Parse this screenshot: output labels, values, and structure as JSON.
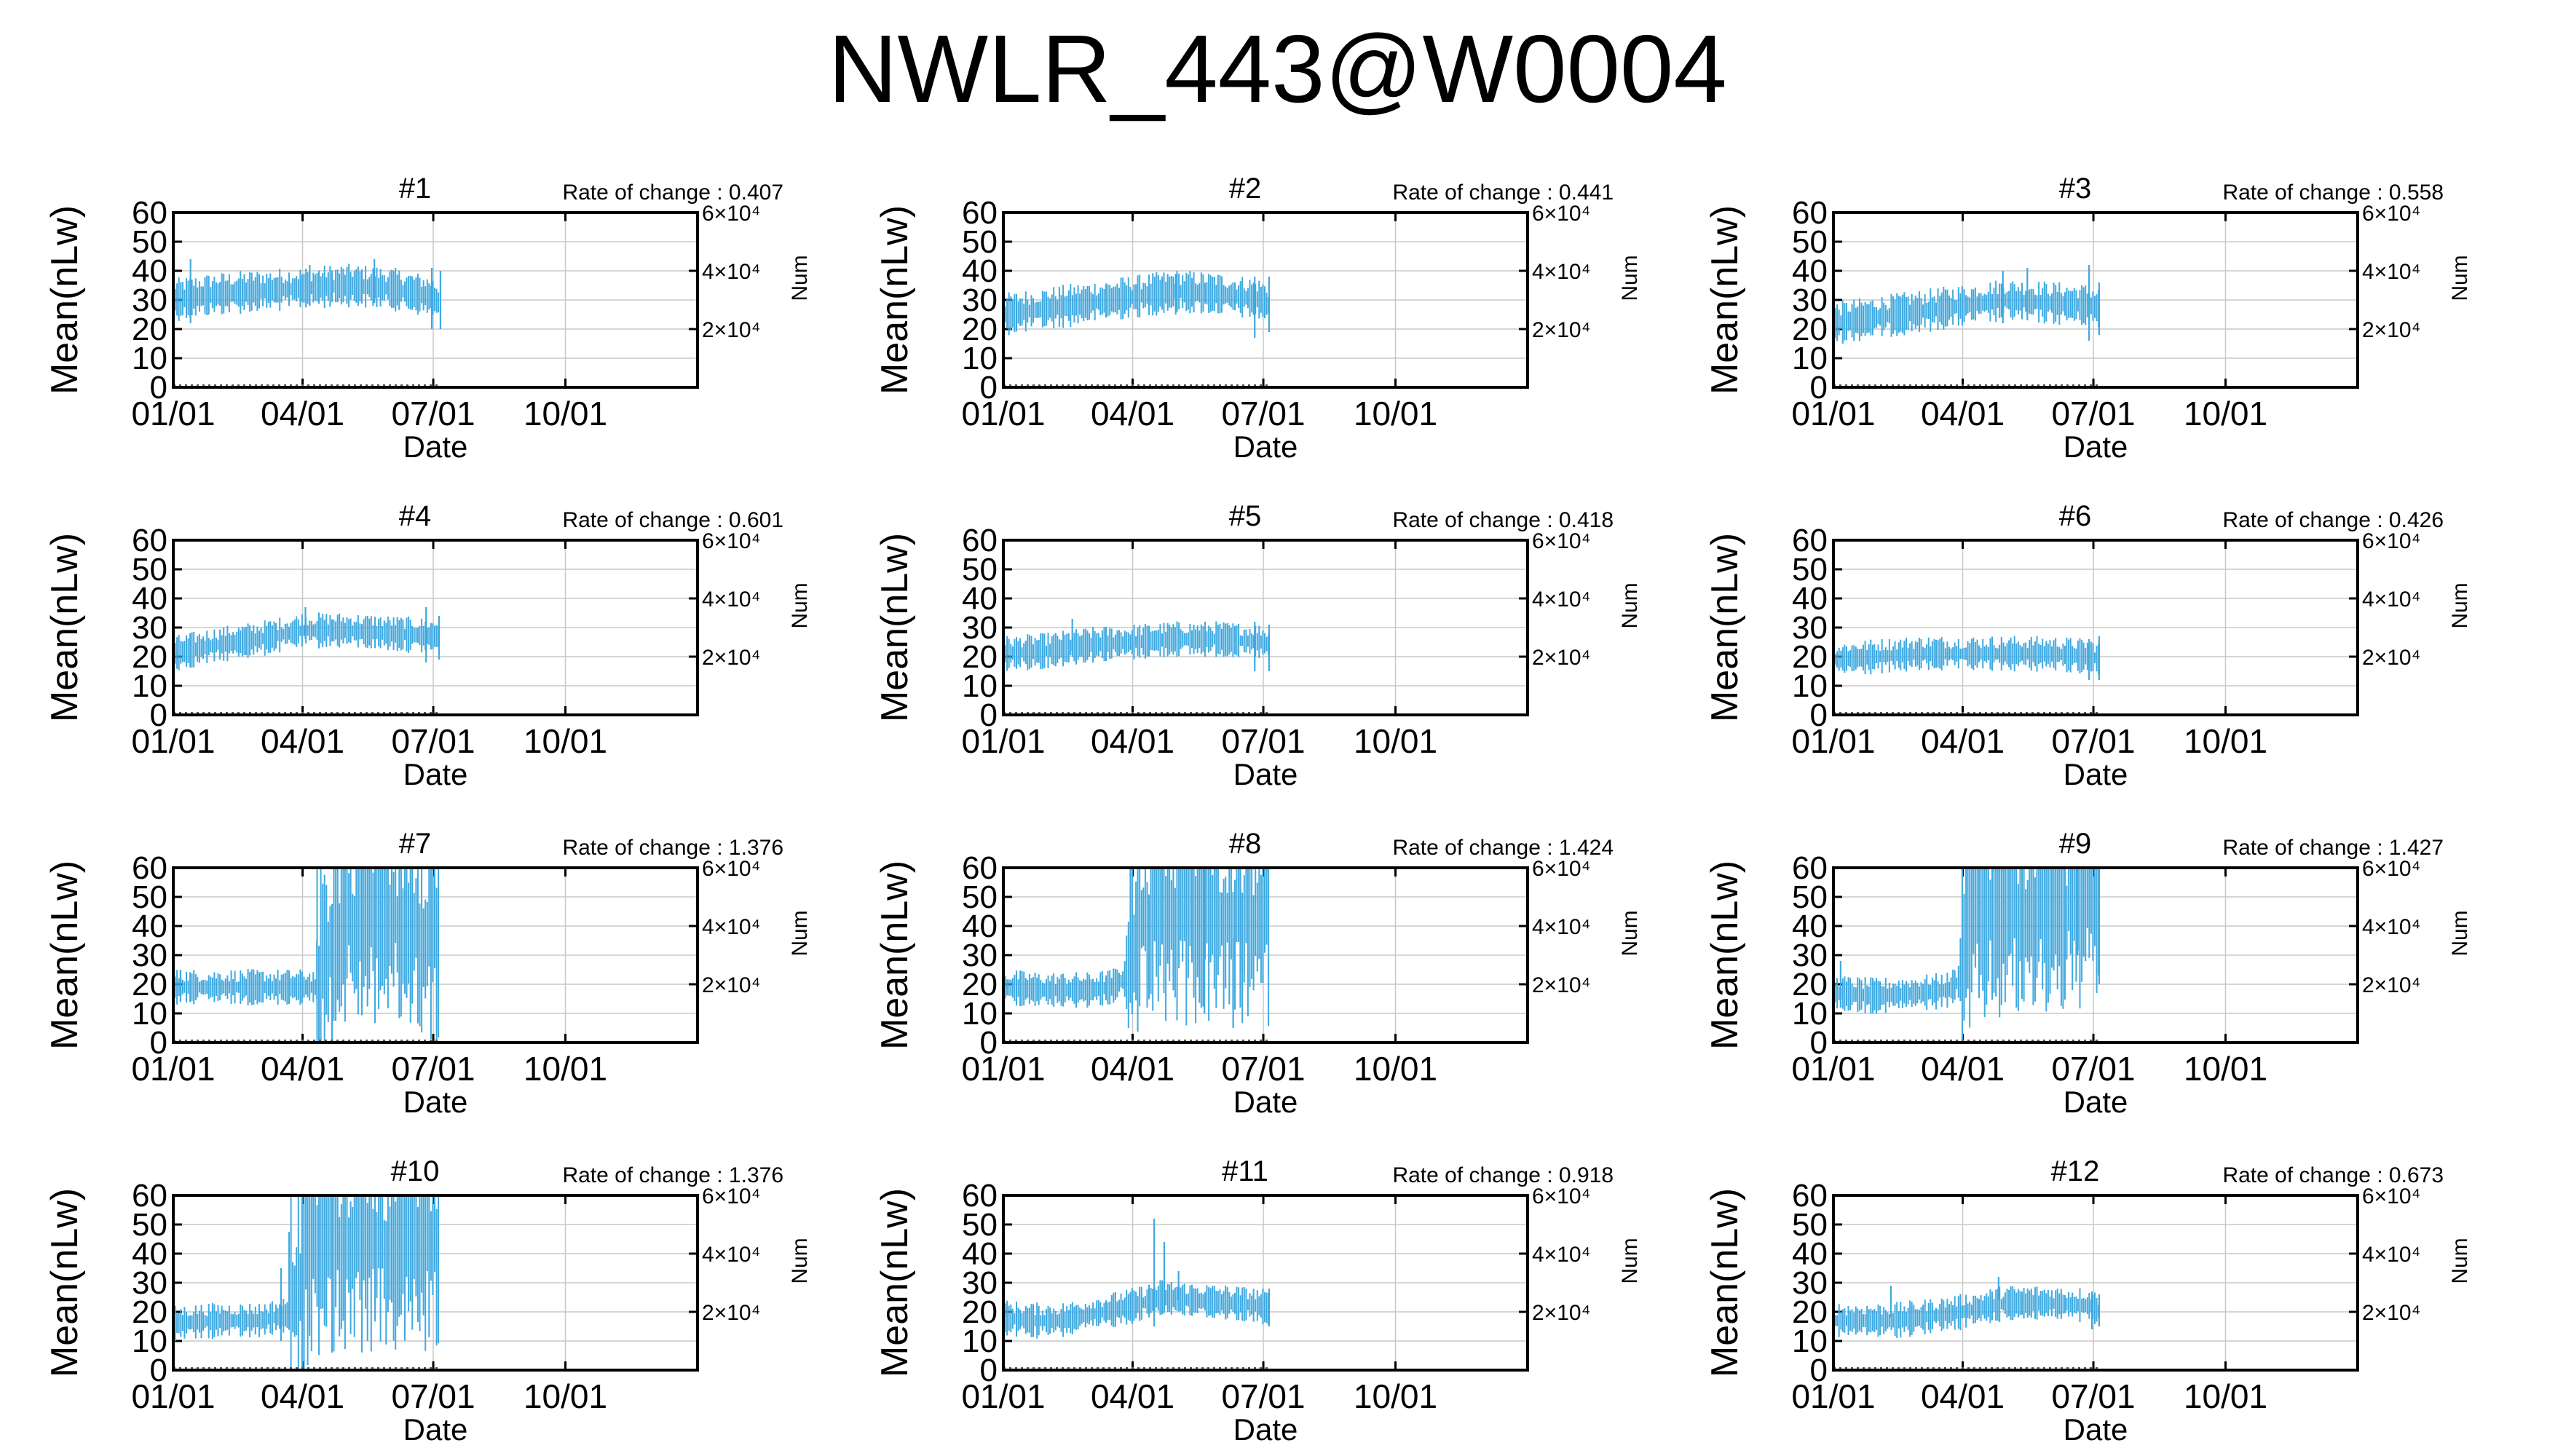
{
  "title": "NWLR_443@W0004",
  "shared": {
    "ylabel": "Mean(nLw)",
    "xlabel": "Date",
    "y2label": "Num",
    "y_ticks": [
      "0",
      "10",
      "20",
      "30",
      "40",
      "50",
      "60"
    ],
    "y2_ticks": [
      "2×10⁴",
      "4×10⁴",
      "6×10⁴"
    ],
    "x_ticks": [
      "01/01",
      "04/01",
      "07/01",
      "10/01"
    ],
    "rate_prefix": "Rate of change : ",
    "series_color": "#3fa9e0"
  },
  "chart_data": [
    {
      "type": "line",
      "label": "#1",
      "rate_of_change": "0.407",
      "x_range": [
        "01/01",
        "12/31"
      ],
      "ylim": [
        0,
        60
      ],
      "y2lim": [
        0,
        60000
      ],
      "data_end": "07/05",
      "mean_path": [
        [
          0,
          30
        ],
        [
          30,
          32
        ],
        [
          60,
          33
        ],
        [
          90,
          34
        ],
        [
          120,
          35
        ],
        [
          150,
          34
        ],
        [
          180,
          31
        ],
        [
          185,
          29
        ]
      ],
      "spread": 6,
      "spikes": [
        [
          0,
          24,
          38
        ],
        [
          12,
          22,
          44
        ],
        [
          95,
          28,
          42
        ],
        [
          140,
          29,
          44
        ],
        [
          180,
          20,
          41
        ],
        [
          186,
          20,
          40
        ]
      ]
    },
    {
      "type": "line",
      "label": "#2",
      "rate_of_change": "0.441",
      "x_range": [
        "01/01",
        "12/31"
      ],
      "ylim": [
        0,
        60
      ],
      "y2lim": [
        0,
        60000
      ],
      "data_end": "07/05",
      "mean_path": [
        [
          0,
          25
        ],
        [
          30,
          27
        ],
        [
          60,
          29
        ],
        [
          90,
          31
        ],
        [
          120,
          33
        ],
        [
          150,
          32
        ],
        [
          180,
          30
        ],
        [
          185,
          28
        ]
      ],
      "spread": 6,
      "spikes": [
        [
          0,
          18,
          33
        ],
        [
          120,
          25,
          39
        ],
        [
          175,
          17,
          38
        ],
        [
          185,
          19,
          38
        ]
      ]
    },
    {
      "type": "line",
      "label": "#3",
      "rate_of_change": "0.558",
      "x_range": [
        "01/01",
        "12/31"
      ],
      "ylim": [
        0,
        60
      ],
      "y2lim": [
        0,
        60000
      ],
      "data_end": "07/05",
      "mean_path": [
        [
          0,
          22
        ],
        [
          30,
          24
        ],
        [
          60,
          26
        ],
        [
          90,
          28
        ],
        [
          120,
          30
        ],
        [
          150,
          29
        ],
        [
          180,
          28
        ],
        [
          185,
          27
        ]
      ],
      "spread": 6,
      "spikes": [
        [
          0,
          15,
          31
        ],
        [
          118,
          22,
          40
        ],
        [
          135,
          23,
          41
        ],
        [
          178,
          16,
          42
        ],
        [
          185,
          18,
          36
        ]
      ]
    },
    {
      "type": "line",
      "label": "#4",
      "rate_of_change": "0.601",
      "x_range": [
        "01/01",
        "12/31"
      ],
      "ylim": [
        0,
        60
      ],
      "y2lim": [
        0,
        60000
      ],
      "data_end": "07/05",
      "mean_path": [
        [
          0,
          21
        ],
        [
          30,
          24
        ],
        [
          60,
          26
        ],
        [
          90,
          29
        ],
        [
          120,
          29
        ],
        [
          150,
          28
        ],
        [
          180,
          27
        ],
        [
          185,
          27
        ]
      ],
      "spread": 5,
      "spikes": [
        [
          0,
          17,
          25
        ],
        [
          92,
          26,
          37
        ],
        [
          176,
          18,
          37
        ],
        [
          185,
          19,
          34
        ]
      ]
    },
    {
      "type": "line",
      "label": "#5",
      "rate_of_change": "0.418",
      "x_range": [
        "01/01",
        "12/31"
      ],
      "ylim": [
        0,
        60
      ],
      "y2lim": [
        0,
        60000
      ],
      "data_end": "07/05",
      "mean_path": [
        [
          0,
          21
        ],
        [
          30,
          22
        ],
        [
          60,
          24
        ],
        [
          90,
          25
        ],
        [
          120,
          26
        ],
        [
          150,
          26
        ],
        [
          180,
          25
        ],
        [
          185,
          24
        ]
      ],
      "spread": 5,
      "spikes": [
        [
          48,
          22,
          33
        ],
        [
          175,
          15,
          32
        ],
        [
          185,
          15,
          31
        ]
      ]
    },
    {
      "type": "line",
      "label": "#6",
      "rate_of_change": "0.426",
      "x_range": [
        "01/01",
        "12/31"
      ],
      "ylim": [
        0,
        60
      ],
      "y2lim": [
        0,
        60000
      ],
      "data_end": "07/05",
      "mean_path": [
        [
          0,
          19
        ],
        [
          30,
          20
        ],
        [
          60,
          21
        ],
        [
          90,
          21
        ],
        [
          120,
          21
        ],
        [
          150,
          21
        ],
        [
          180,
          20
        ],
        [
          185,
          19
        ]
      ],
      "spread": 5,
      "spikes": [
        [
          0,
          14,
          25
        ],
        [
          178,
          12,
          26
        ],
        [
          185,
          12,
          27
        ]
      ]
    },
    {
      "type": "line",
      "label": "#7",
      "rate_of_change": "1.376",
      "x_range": [
        "01/01",
        "12/31"
      ],
      "ylim": [
        0,
        60
      ],
      "y2lim": [
        0,
        60000
      ],
      "data_end": "07/05",
      "mean_path": [
        [
          0,
          19
        ],
        [
          30,
          19
        ],
        [
          60,
          19
        ],
        [
          90,
          19
        ],
        [
          100,
          19
        ],
        [
          105,
          24
        ],
        [
          120,
          40
        ],
        [
          150,
          40
        ],
        [
          180,
          35
        ],
        [
          185,
          30
        ]
      ],
      "spread": 5,
      "high_after": 100,
      "spikes": [
        [
          5,
          14,
          25
        ],
        [
          100,
          15,
          35
        ]
      ]
    },
    {
      "type": "line",
      "label": "#8",
      "rate_of_change": "1.424",
      "x_range": [
        "01/01",
        "12/31"
      ],
      "ylim": [
        0,
        60
      ],
      "y2lim": [
        0,
        60000
      ],
      "data_end": "07/05",
      "mean_path": [
        [
          0,
          19
        ],
        [
          30,
          18
        ],
        [
          60,
          18
        ],
        [
          75,
          19
        ],
        [
          85,
          22
        ],
        [
          95,
          40
        ],
        [
          110,
          40
        ]
      ],
      "spread": 5,
      "high_after": 85,
      "spikes": [
        [
          140,
          10,
          60
        ],
        [
          160,
          5,
          36
        ],
        [
          165,
          12,
          60
        ]
      ]
    },
    {
      "type": "line",
      "label": "#9",
      "rate_of_change": "1.427",
      "x_range": [
        "01/01",
        "12/31"
      ],
      "ylim": [
        0,
        60
      ],
      "y2lim": [
        0,
        60000
      ],
      "data_end": "07/05",
      "mean_path": [
        [
          0,
          17
        ],
        [
          30,
          16
        ],
        [
          60,
          17
        ],
        [
          80,
          18
        ],
        [
          90,
          22
        ],
        [
          100,
          40
        ],
        [
          185,
          45
        ]
      ],
      "spread": 5,
      "high_after": 88,
      "spikes": [
        [
          0,
          12,
          31
        ],
        [
          5,
          12,
          28
        ],
        [
          170,
          30,
          60
        ],
        [
          185,
          20,
          60
        ]
      ]
    },
    {
      "type": "line",
      "label": "#10",
      "rate_of_change": "1.376",
      "x_range": [
        "01/01",
        "12/31"
      ],
      "ylim": [
        0,
        60
      ],
      "y2lim": [
        0,
        60000
      ],
      "data_end": "07/05",
      "mean_path": [
        [
          0,
          16
        ],
        [
          30,
          17
        ],
        [
          60,
          17
        ],
        [
          80,
          19
        ],
        [
          88,
          22
        ],
        [
          95,
          40
        ],
        [
          185,
          40
        ]
      ],
      "spread": 5,
      "high_after": 80,
      "spikes": [
        [
          0,
          10,
          21
        ],
        [
          75,
          10,
          35
        ]
      ]
    },
    {
      "type": "line",
      "label": "#11",
      "rate_of_change": "0.918",
      "x_range": [
        "01/01",
        "12/31"
      ],
      "ylim": [
        0,
        60
      ],
      "y2lim": [
        0,
        60000
      ],
      "data_end": "07/05",
      "mean_path": [
        [
          0,
          18
        ],
        [
          20,
          17
        ],
        [
          40,
          17
        ],
        [
          60,
          19
        ],
        [
          90,
          22
        ],
        [
          110,
          25
        ],
        [
          130,
          24
        ],
        [
          160,
          23
        ],
        [
          180,
          22
        ],
        [
          185,
          21
        ]
      ],
      "spread": 5,
      "spikes": [
        [
          0,
          12,
          22
        ],
        [
          105,
          15,
          52
        ],
        [
          112,
          20,
          44
        ],
        [
          122,
          24,
          34
        ],
        [
          185,
          15,
          28
        ]
      ]
    },
    {
      "type": "line",
      "label": "#12",
      "rate_of_change": "0.673",
      "x_range": [
        "01/01",
        "12/31"
      ],
      "ylim": [
        0,
        60
      ],
      "y2lim": [
        0,
        60000
      ],
      "data_end": "07/05",
      "mean_path": [
        [
          0,
          17
        ],
        [
          20,
          17
        ],
        [
          40,
          17
        ],
        [
          60,
          18
        ],
        [
          90,
          20
        ],
        [
          120,
          23
        ],
        [
          150,
          23
        ],
        [
          180,
          22
        ],
        [
          185,
          20
        ]
      ],
      "spread": 5,
      "spikes": [
        [
          0,
          12,
          22
        ],
        [
          40,
          18,
          29
        ],
        [
          115,
          24,
          32
        ],
        [
          180,
          14,
          27
        ],
        [
          185,
          15,
          26
        ]
      ]
    }
  ]
}
